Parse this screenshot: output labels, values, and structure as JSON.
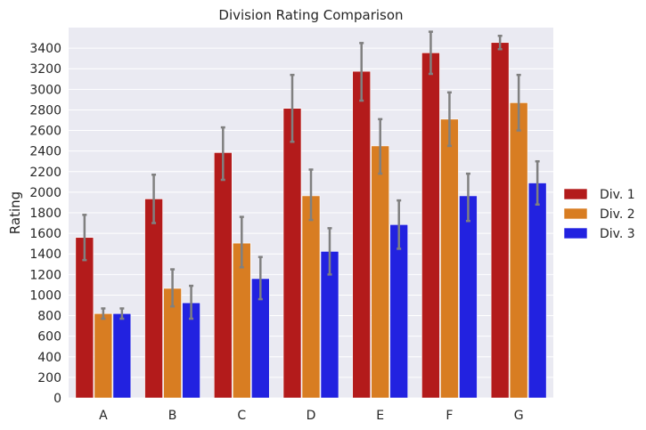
{
  "chart_data": {
    "type": "bar",
    "title": "Division Rating Comparison",
    "xlabel": "",
    "ylabel": "Rating",
    "ylim": [
      0,
      3600
    ],
    "yticks": [
      0,
      200,
      400,
      600,
      800,
      1000,
      1200,
      1400,
      1600,
      1800,
      2000,
      2200,
      2400,
      2600,
      2800,
      3000,
      3200,
      3400
    ],
    "categories": [
      "A",
      "B",
      "C",
      "D",
      "E",
      "F",
      "G"
    ],
    "grid": true,
    "legend_position": "right",
    "series": [
      {
        "name": "Div. 1",
        "color": "#b31b1b",
        "values": [
          1560,
          1935,
          2385,
          2815,
          3175,
          3355,
          3455
        ],
        "error_low": [
          1340,
          1700,
          2120,
          2490,
          2890,
          3150,
          3390
        ],
        "error_high": [
          1780,
          2170,
          2630,
          3140,
          3450,
          3560,
          3520
        ]
      },
      {
        "name": "Div. 2",
        "color": "#d87d22",
        "values": [
          820,
          1065,
          1505,
          1965,
          2450,
          2710,
          2870
        ],
        "error_low": [
          770,
          890,
          1270,
          1730,
          2180,
          2450,
          2600
        ],
        "error_high": [
          870,
          1250,
          1760,
          2220,
          2710,
          2970,
          3140
        ]
      },
      {
        "name": "Div. 3",
        "color": "#2222e0",
        "values": [
          820,
          925,
          1160,
          1425,
          1685,
          1965,
          2090
        ],
        "error_low": [
          770,
          770,
          960,
          1200,
          1450,
          1720,
          1880
        ],
        "error_high": [
          870,
          1090,
          1370,
          1650,
          1920,
          2180,
          2300
        ]
      }
    ]
  }
}
